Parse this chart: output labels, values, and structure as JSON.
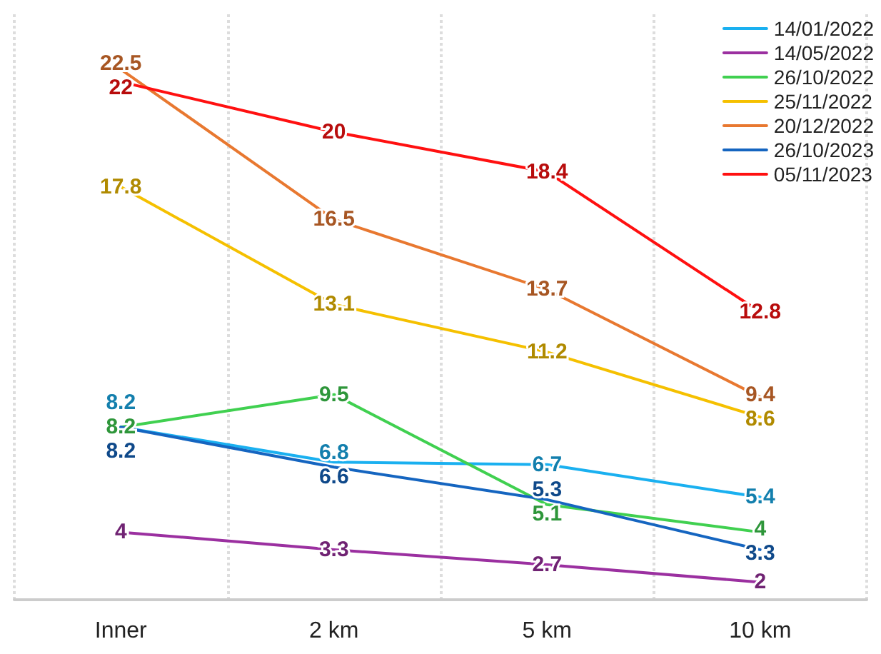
{
  "chart_data": {
    "type": "line",
    "categories": [
      "Inner",
      "2 km",
      "5 km",
      "10 km"
    ],
    "series": [
      {
        "name": "14/01/2022",
        "color": "#1ab0f0",
        "values": [
          8.2,
          6.8,
          6.7,
          5.4
        ]
      },
      {
        "name": "14/05/2022",
        "color": "#9b30a0",
        "values": [
          4,
          3.3,
          2.7,
          2
        ]
      },
      {
        "name": "26/10/2022",
        "color": "#40d050",
        "values": [
          8.2,
          9.5,
          5.1,
          4
        ]
      },
      {
        "name": "25/11/2022",
        "color": "#f5c000",
        "values": [
          17.8,
          13.1,
          11.2,
          8.6
        ]
      },
      {
        "name": "20/12/2022",
        "color": "#e87830",
        "values": [
          22.5,
          16.5,
          13.7,
          9.4
        ]
      },
      {
        "name": "26/10/2023",
        "color": "#1565c0",
        "values": [
          8.2,
          6.6,
          5.3,
          3.3
        ]
      },
      {
        "name": "05/11/2023",
        "color": "#ff1010",
        "values": [
          22,
          20,
          18.4,
          12.8
        ]
      }
    ],
    "ylim": [
      1.3,
      24.7
    ],
    "data_labels": true,
    "grid": "x",
    "legend": "top right",
    "marker": "none",
    "line_style": "solid"
  }
}
